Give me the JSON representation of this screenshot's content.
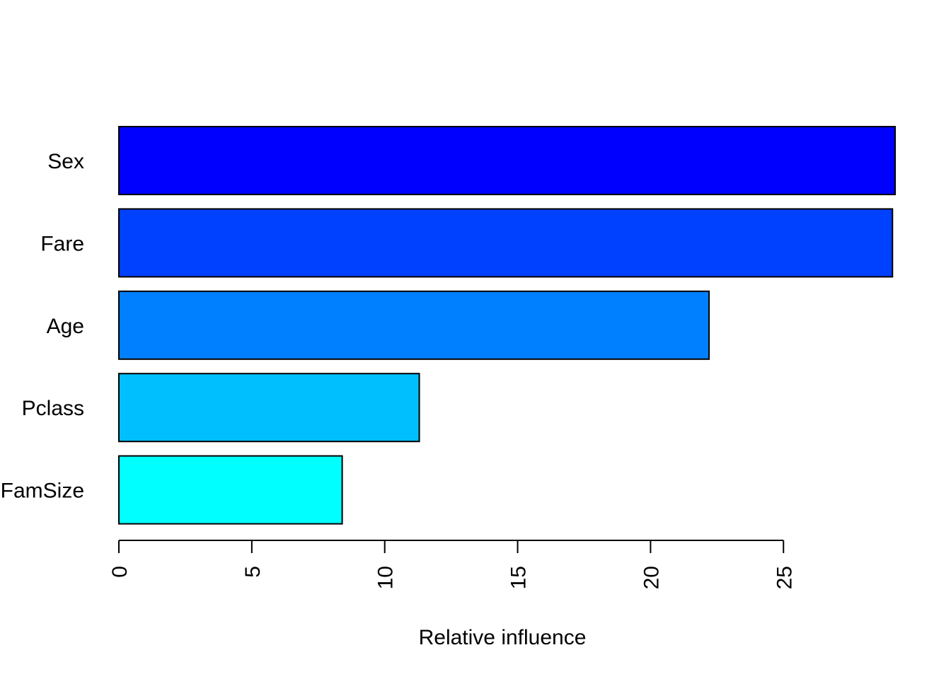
{
  "chart_data": {
    "type": "bar",
    "orientation": "horizontal",
    "categories": [
      "Sex",
      "Fare",
      "Age",
      "Pclass",
      "FamSize"
    ],
    "values": [
      29.2,
      29.1,
      22.2,
      11.3,
      8.4
    ],
    "colors": [
      "#0000FF",
      "#0040FF",
      "#0080FF",
      "#00BFFF",
      "#00FFFF"
    ],
    "xlabel": "Relative influence",
    "xticks": [
      0,
      5,
      10,
      15,
      20,
      25
    ],
    "xtick_labels": [
      "0",
      "5",
      "10",
      "15",
      "20",
      "25"
    ],
    "xlim": [
      0,
      29.2
    ],
    "grid": false,
    "legend": "none"
  }
}
